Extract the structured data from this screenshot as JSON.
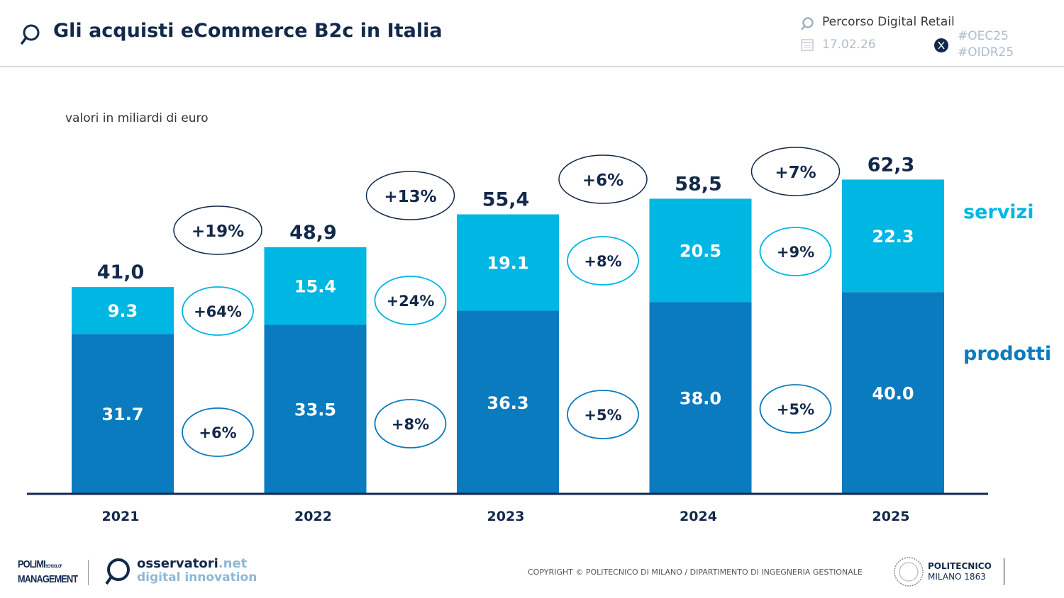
{
  "header": {
    "title": "Gli acquisti eCommerce B2c in Italia",
    "path": "Percorso Digital Retail",
    "date": "17.02.26",
    "hashtags": [
      "#OEC25",
      "#OIDR25"
    ],
    "icons": [
      "magnifier-icon",
      "calendar-icon",
      "x-logo-icon"
    ]
  },
  "chart_data": {
    "type": "bar",
    "stacked": true,
    "subtitle": "valori in miliardi di euro",
    "categories": [
      "2021",
      "2022",
      "2023",
      "2024",
      "2025"
    ],
    "series": [
      {
        "name": "prodotti",
        "values": [
          31.7,
          33.5,
          36.3,
          38.0,
          40.0
        ],
        "labels": [
          "31.7",
          "33.5",
          "36.3",
          "38.0",
          "40.0"
        ],
        "color": "#0a7bbf"
      },
      {
        "name": "servizi",
        "values": [
          9.3,
          15.4,
          19.1,
          20.5,
          22.3
        ],
        "labels": [
          "9.3",
          "15.4",
          "19.1",
          "20.5",
          "22.3"
        ],
        "color": "#00b6e3"
      }
    ],
    "totals": [
      "41,0",
      "48,9",
      "55,4",
      "58,5",
      "62,3"
    ],
    "growth_total": [
      "+19%",
      "+13%",
      "+6%",
      "+7%"
    ],
    "growth_servizi": [
      "+64%",
      "+24%",
      "+8%",
      "+9%"
    ],
    "growth_prodotti": [
      "+6%",
      "+8%",
      "+5%",
      "+5%"
    ],
    "ylim": [
      0,
      65
    ],
    "grid": false
  },
  "footer": {
    "copyright": "COPYRIGHT © POLITECNICO DI MILANO / DIPARTIMENTO DI INGEGNERIA GESTIONALE",
    "logo_polimi": "POLIMI SCHOOL OF MANAGEMENT",
    "logo_osservatori": "osservatori.net digital innovation",
    "logo_politecnico": "POLITECNICO MILANO 1863"
  }
}
